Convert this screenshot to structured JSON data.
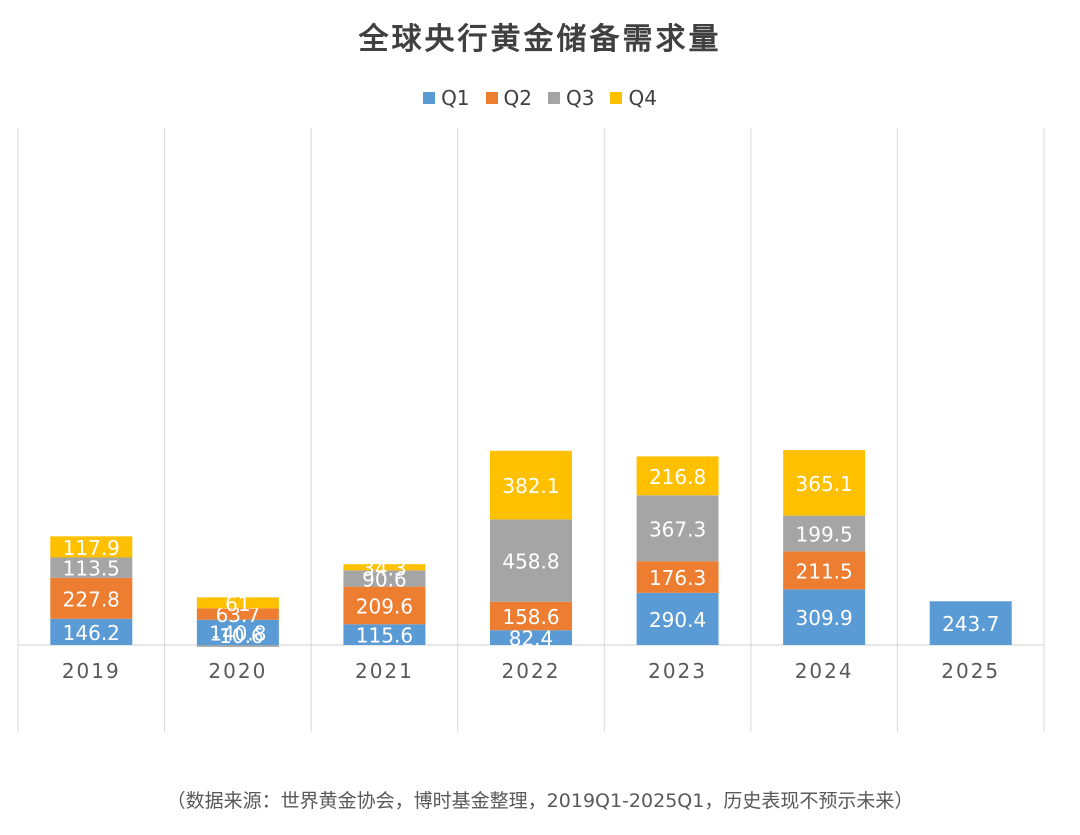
{
  "chart_data": {
    "type": "bar",
    "stacked": true,
    "title": "全球央行黄金储备需求量",
    "categories": [
      "2019",
      "2020",
      "2021",
      "2022",
      "2023",
      "2024",
      "2025"
    ],
    "series": [
      {
        "name": "Q1",
        "color": "#5b9bd5",
        "values": [
          146.2,
          140.8,
          115.6,
          82.4,
          290.4,
          309.9,
          243.7
        ]
      },
      {
        "name": "Q2",
        "color": "#ed7d31",
        "values": [
          227.8,
          63.7,
          209.6,
          158.6,
          176.3,
          211.5,
          null
        ]
      },
      {
        "name": "Q3",
        "color": "#a5a5a5",
        "values": [
          113.5,
          -10.6,
          90.6,
          458.8,
          367.3,
          199.5,
          null
        ]
      },
      {
        "name": "Q4",
        "color": "#ffc000",
        "values": [
          117.9,
          61,
          34.3,
          382.1,
          216.8,
          365.1,
          null
        ]
      }
    ],
    "legend_position": "top",
    "grid": "vertical-category-separators",
    "data_labels": true
  },
  "source_note": "（数据来源：世界黄金协会，博时基金整理，2019Q1-2025Q1，历史表现不预示未来）"
}
